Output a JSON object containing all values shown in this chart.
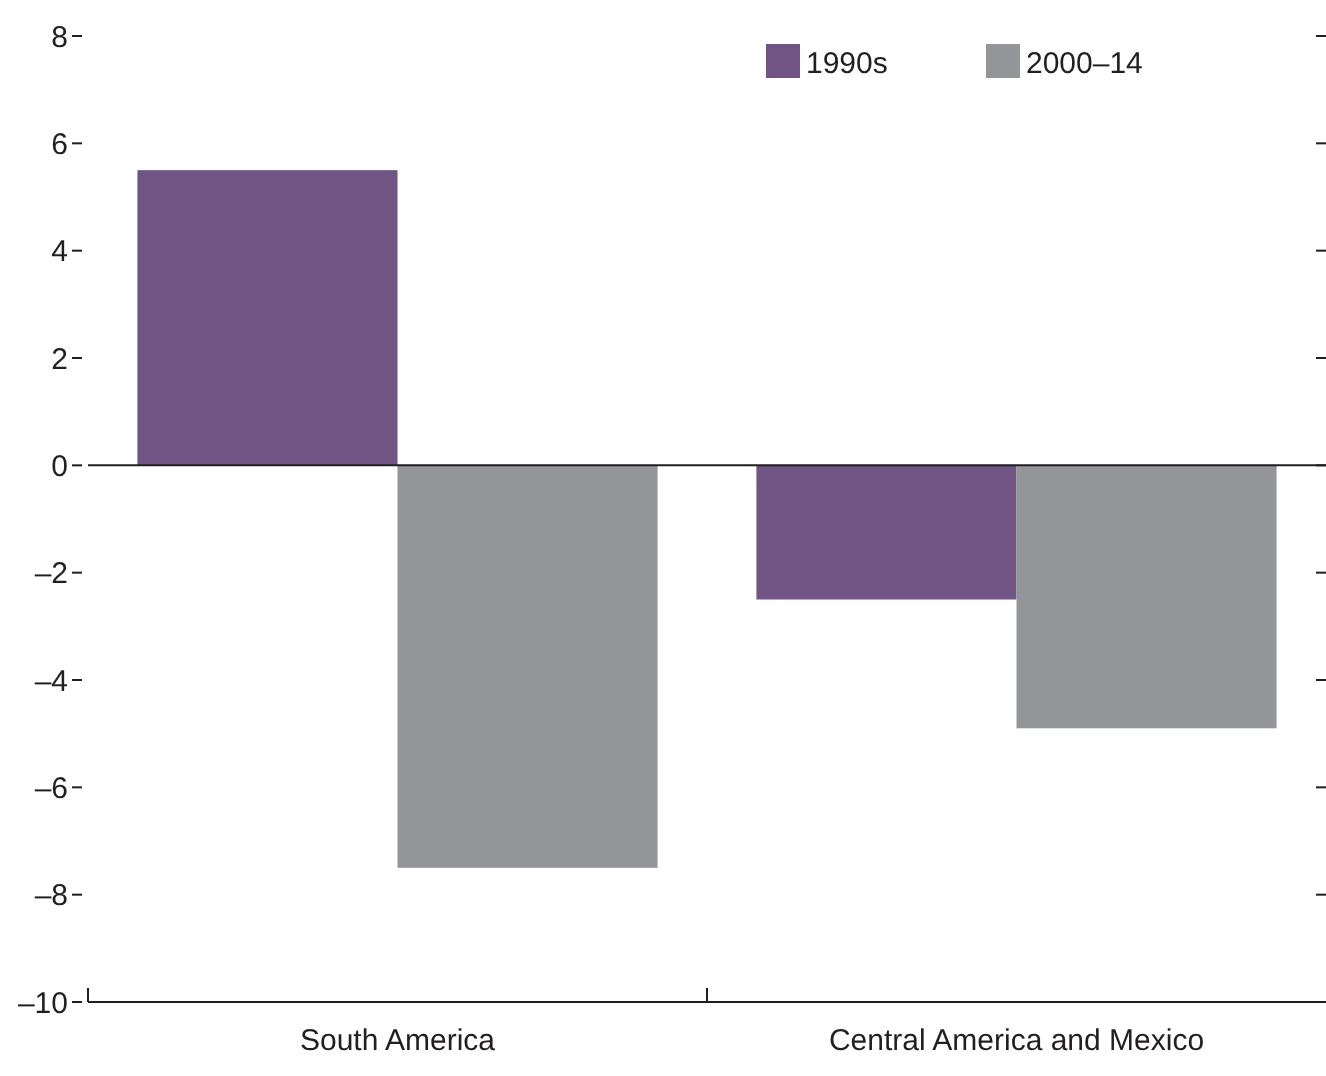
{
  "chart_data": {
    "type": "bar",
    "categories": [
      "South America",
      "Central America and Mexico"
    ],
    "series": [
      {
        "name": "1990s",
        "color": "#6f5484",
        "values": [
          5.5,
          -2.5
        ]
      },
      {
        "name": "2000–14",
        "color": "#949599",
        "values": [
          -7.5,
          -4.9
        ]
      }
    ],
    "ylim": [
      -10,
      8
    ],
    "yticks": [
      {
        "value": -10,
        "label": "–10"
      },
      {
        "value": -8,
        "label": "–8"
      },
      {
        "value": -6,
        "label": "–6"
      },
      {
        "value": -4,
        "label": "–4"
      },
      {
        "value": -2,
        "label": "–2"
      },
      0,
      2,
      4,
      6,
      8
    ],
    "legend": "top right"
  }
}
